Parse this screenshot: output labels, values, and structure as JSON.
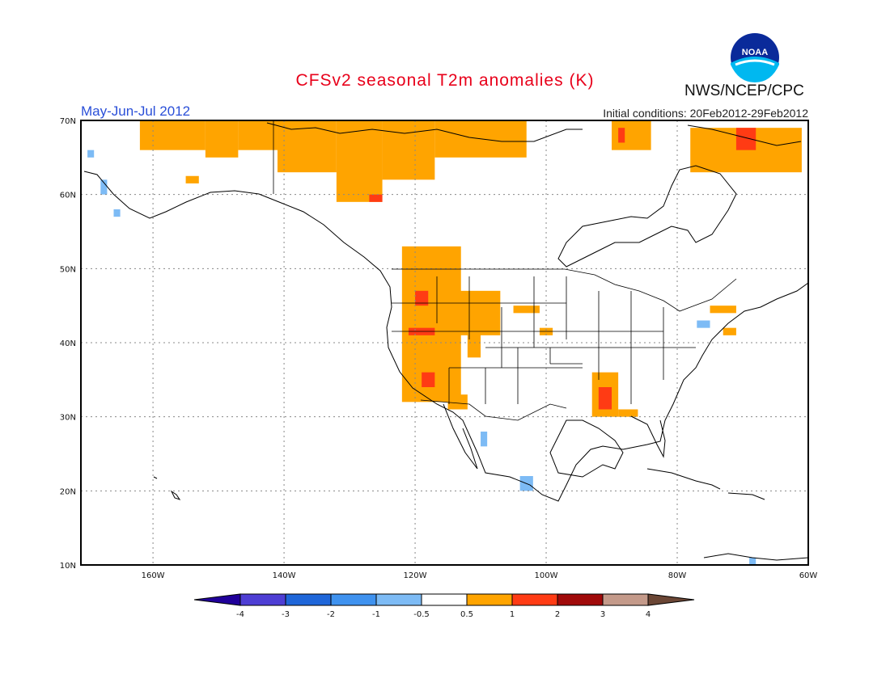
{
  "title": "CFSv2 seasonal T2m anomalies (K)",
  "period": "May-Jun-Jul 2012",
  "initial_conditions": "Initial conditions: 20Feb2012-29Feb2012",
  "agency": "NWS/NCEP/CPC",
  "logo_text": "NOAA",
  "colors": {
    "title": "#e8001a",
    "period": "#2a4fd8",
    "warm_0_5_to_1": "#ffa400",
    "warm_1_to_2": "#ff3b14",
    "cool_-1_to_-0_5": "#7dbbf5"
  },
  "map": {
    "lat_labels": [
      "70N",
      "60N",
      "50N",
      "40N",
      "30N",
      "20N",
      "10N"
    ],
    "lon_labels": [
      "160W",
      "140W",
      "120W",
      "100W",
      "80W",
      "60W"
    ]
  },
  "colorbar": {
    "labels": [
      "-4",
      "-3",
      "-2",
      "-1",
      "-0.5",
      "0.5",
      "1",
      "2",
      "3",
      "4"
    ],
    "colors": [
      "#20009a",
      "#4e3ed4",
      "#1f66d9",
      "#3f92ef",
      "#7dbbf5",
      "#ffffff",
      "#ffa400",
      "#ff3b14",
      "#a00a0a",
      "#c49a8a",
      "#6b4635"
    ]
  },
  "chart_data": {
    "type": "heatmap",
    "title": "CFSv2 seasonal T2m anomalies (K)",
    "subtitle": "May-Jun-Jul 2012",
    "units": "K",
    "lon_range": [
      -171,
      -60
    ],
    "lat_range": [
      10,
      70
    ],
    "regions": [
      {
        "category": "0.5-1",
        "lon": [
          -162,
          -152
        ],
        "lat": [
          66,
          70
        ]
      },
      {
        "category": "0.5-1",
        "lon": [
          -152,
          -147
        ],
        "lat": [
          65,
          70
        ]
      },
      {
        "category": "0.5-1",
        "lon": [
          -147,
          -141
        ],
        "lat": [
          66,
          70
        ]
      },
      {
        "category": "0.5-1",
        "lon": [
          -141,
          -132
        ],
        "lat": [
          63,
          70
        ]
      },
      {
        "category": "0.5-1",
        "lon": [
          -132,
          -125
        ],
        "lat": [
          59,
          70
        ]
      },
      {
        "category": "0.5-1",
        "lon": [
          -125,
          -117
        ],
        "lat": [
          62,
          70
        ]
      },
      {
        "category": "0.5-1",
        "lon": [
          -117,
          -103
        ],
        "lat": [
          65,
          70
        ]
      },
      {
        "category": "0.5-1",
        "lon": [
          -155,
          -153
        ],
        "lat": [
          61.5,
          62.5
        ]
      },
      {
        "category": "1-2",
        "lon": [
          -127,
          -125
        ],
        "lat": [
          59,
          60
        ]
      },
      {
        "category": "0.5-1",
        "lon": [
          -90,
          -84
        ],
        "lat": [
          66,
          70
        ]
      },
      {
        "category": "1-2",
        "lon": [
          -89,
          -88
        ],
        "lat": [
          67,
          69
        ]
      },
      {
        "category": "0.5-1",
        "lon": [
          -78,
          -61
        ],
        "lat": [
          63,
          69
        ]
      },
      {
        "category": "1-2",
        "lon": [
          -71,
          -68
        ],
        "lat": [
          66,
          69
        ]
      },
      {
        "category": "0.5-1",
        "lon": [
          -122,
          -113
        ],
        "lat": [
          40,
          53
        ]
      },
      {
        "category": "0.5-1",
        "lon": [
          -118,
          -107
        ],
        "lat": [
          41,
          47
        ]
      },
      {
        "category": "0.5-1",
        "lon": [
          -122,
          -113
        ],
        "lat": [
          32,
          40
        ]
      },
      {
        "category": "0.5-1",
        "lon": [
          -112,
          -110
        ],
        "lat": [
          38,
          42
        ]
      },
      {
        "category": "0.5-1",
        "lon": [
          -115,
          -112
        ],
        "lat": [
          31,
          33
        ]
      },
      {
        "category": "1-2",
        "lon": [
          -120,
          -118
        ],
        "lat": [
          45,
          47
        ]
      },
      {
        "category": "1-2",
        "lon": [
          -121,
          -117
        ],
        "lat": [
          41,
          42
        ]
      },
      {
        "category": "1-2",
        "lon": [
          -119,
          -117
        ],
        "lat": [
          34,
          36
        ]
      },
      {
        "category": "0.5-1",
        "lon": [
          -105,
          -101
        ],
        "lat": [
          44,
          45
        ]
      },
      {
        "category": "0.5-1",
        "lon": [
          -101,
          -99
        ],
        "lat": [
          41,
          42
        ]
      },
      {
        "category": "0.5-1",
        "lon": [
          -93,
          -89
        ],
        "lat": [
          30,
          36
        ]
      },
      {
        "category": "1-2",
        "lon": [
          -92,
          -90
        ],
        "lat": [
          31,
          34
        ]
      },
      {
        "category": "0.5-1",
        "lon": [
          -89,
          -86
        ],
        "lat": [
          30,
          31
        ]
      },
      {
        "category": "0.5-1",
        "lon": [
          -75,
          -71
        ],
        "lat": [
          44,
          45
        ]
      },
      {
        "category": "0.5-1",
        "lon": [
          -73,
          -71
        ],
        "lat": [
          41,
          42
        ]
      },
      {
        "category": "-1--0.5",
        "lon": [
          -104,
          -102
        ],
        "lat": [
          20,
          22
        ]
      },
      {
        "category": "-1--0.5",
        "lon": [
          -110,
          -109
        ],
        "lat": [
          26,
          28
        ]
      },
      {
        "category": "-1--0.5",
        "lon": [
          -77,
          -75
        ],
        "lat": [
          42,
          43
        ]
      },
      {
        "category": "-1--0.5",
        "lon": [
          -166,
          -165
        ],
        "lat": [
          57,
          58
        ]
      },
      {
        "category": "-1--0.5",
        "lon": [
          -168,
          -167
        ],
        "lat": [
          60,
          62
        ]
      },
      {
        "category": "-1--0.5",
        "lon": [
          -170,
          -169
        ],
        "lat": [
          65,
          66
        ]
      },
      {
        "category": "-1--0.5",
        "lon": [
          -69,
          -68
        ],
        "lat": [
          10,
          11
        ]
      }
    ]
  }
}
